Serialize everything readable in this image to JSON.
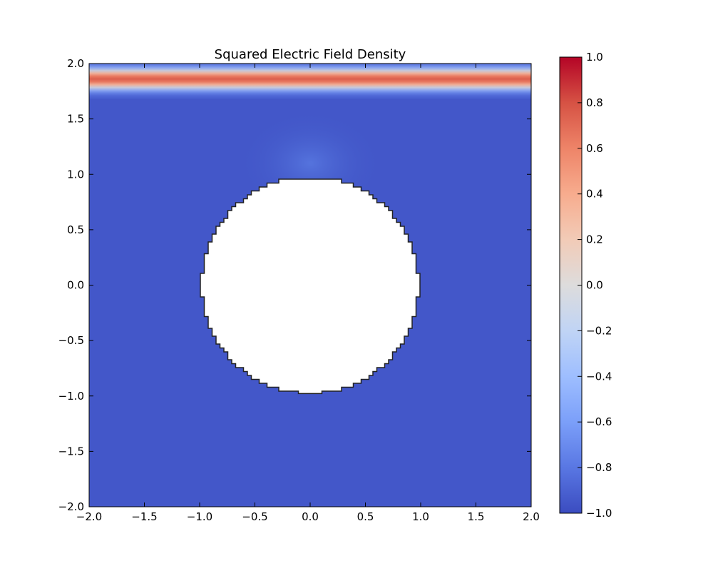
{
  "chart_data": {
    "type": "heatmap",
    "title": "Squared Electric Field Density",
    "xlabel": "",
    "ylabel": "",
    "xlim": [
      -2.0,
      2.0
    ],
    "ylim": [
      -2.0,
      2.0
    ],
    "x_ticks": [
      "−2.0",
      "−1.5",
      "−1.0",
      "−0.5",
      "0.0",
      "0.5",
      "1.0",
      "1.5",
      "2.0"
    ],
    "x_tick_values": [
      -2.0,
      -1.5,
      -1.0,
      -0.5,
      0.0,
      0.5,
      1.0,
      1.5,
      2.0
    ],
    "y_ticks": [
      "−2.0",
      "−1.5",
      "−1.0",
      "−0.5",
      "0.0",
      "0.5",
      "1.0",
      "1.5",
      "2.0"
    ],
    "y_tick_values": [
      -2.0,
      -1.5,
      -1.0,
      -0.5,
      0.0,
      0.5,
      1.0,
      1.5,
      2.0
    ],
    "colormap": "coolwarm",
    "colorbar": {
      "range": [
        -1.0,
        1.0
      ],
      "ticks": [
        "−1.0",
        "−0.8",
        "−0.6",
        "−0.4",
        "−0.2",
        "0.0",
        "0.2",
        "0.4",
        "0.6",
        "0.8",
        "1.0"
      ],
      "tick_values": [
        -1.0,
        -0.8,
        -0.6,
        -0.4,
        -0.2,
        0.0,
        0.2,
        0.4,
        0.6,
        0.8,
        1.0
      ],
      "colors": [
        "#3b4cc0",
        "#5977e3",
        "#7b9ff9",
        "#9ebeff",
        "#c0d4f5",
        "#dddcdc",
        "#f2cbb7",
        "#f7ac8e",
        "#ee8468",
        "#d65244",
        "#b40426"
      ]
    },
    "field": {
      "background_value": -0.95,
      "bright_band": {
        "y_center": 1.86,
        "half_width": 0.1,
        "peak_value": 0.75
      },
      "glow_above_obstacle": {
        "x": 0.0,
        "y": 1.1,
        "peak_value": -0.8
      }
    },
    "obstacle": {
      "shape": "circle",
      "center": [
        0.0,
        0.0
      ],
      "radius": 0.98,
      "fill": "#ffffff",
      "edge": "#222222"
    }
  }
}
